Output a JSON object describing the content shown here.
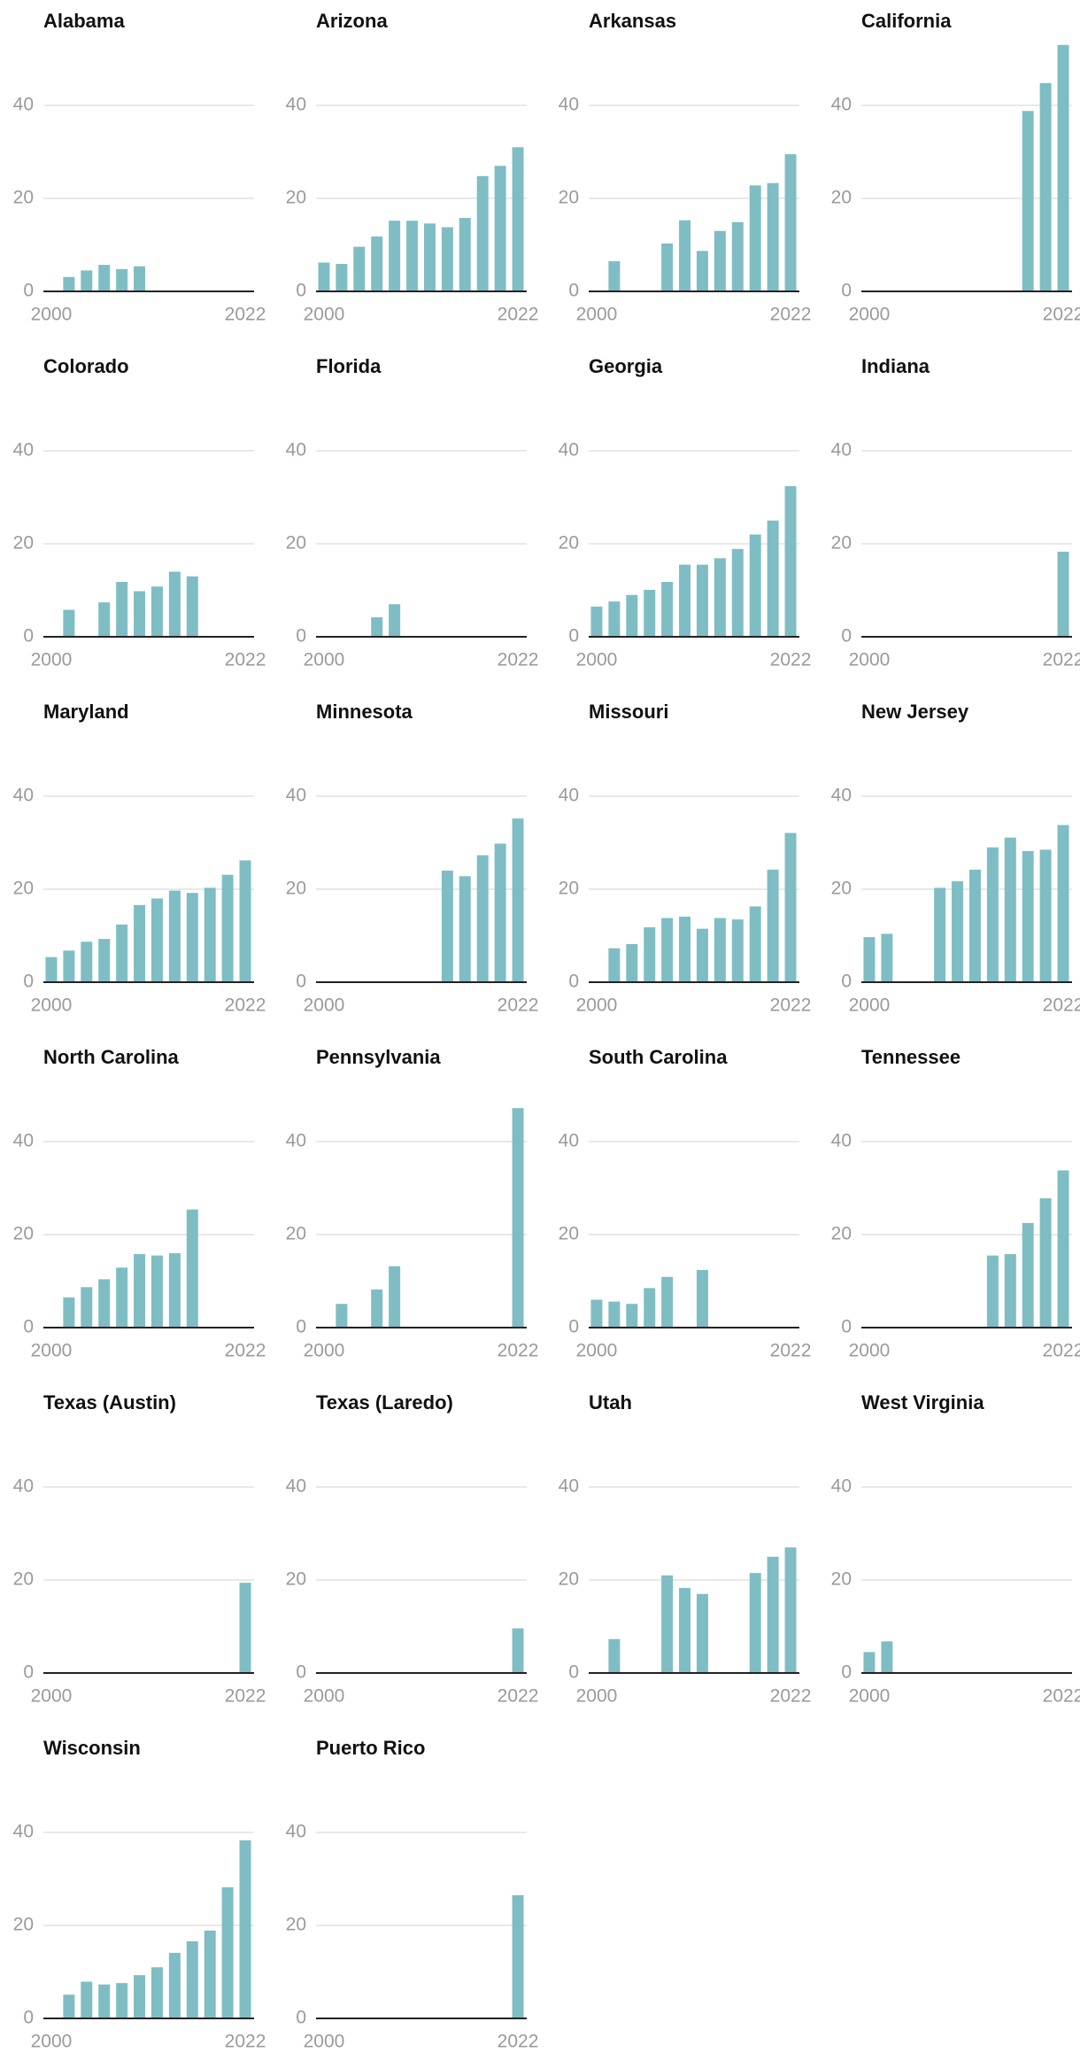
{
  "chart_data": [
    {
      "type": "bar",
      "title": "Alabama",
      "x": [
        2000,
        2002,
        2004,
        2006,
        2008,
        2010,
        2012,
        2014,
        2016,
        2018,
        2020,
        2022
      ],
      "values": [
        null,
        3.1,
        4.5,
        5.7,
        4.8,
        5.4,
        null,
        null,
        null,
        null,
        null,
        null
      ],
      "color": "#7fbdc4",
      "xlim": [
        1999.1,
        2023
      ],
      "xticks": [
        2000,
        2022
      ],
      "ylim": [
        0,
        54
      ],
      "yticks": [
        0,
        20,
        40
      ],
      "grid": true
    },
    {
      "type": "bar",
      "title": "Arizona",
      "x": [
        2000,
        2002,
        2004,
        2006,
        2008,
        2010,
        2012,
        2014,
        2016,
        2018,
        2020,
        2022
      ],
      "values": [
        6.2,
        5.9,
        9.6,
        11.8,
        15.2,
        15.2,
        14.6,
        13.8,
        15.8,
        24.8,
        27,
        31
      ],
      "color": "#7fbdc4",
      "xlim": [
        1999.1,
        2023
      ],
      "xticks": [
        2000,
        2022
      ],
      "ylim": [
        0,
        54
      ],
      "yticks": [
        0,
        20,
        40
      ],
      "grid": true
    },
    {
      "type": "bar",
      "title": "Arkansas",
      "x": [
        2000,
        2002,
        2004,
        2006,
        2008,
        2010,
        2012,
        2014,
        2016,
        2018,
        2020,
        2022
      ],
      "values": [
        null,
        6.5,
        null,
        null,
        10.3,
        15.3,
        8.7,
        13,
        14.9,
        22.8,
        23.3,
        29.5
      ],
      "color": "#7fbdc4",
      "xlim": [
        1999.1,
        2023
      ],
      "xticks": [
        2000,
        2022
      ],
      "ylim": [
        0,
        54
      ],
      "yticks": [
        0,
        20,
        40
      ],
      "grid": true
    },
    {
      "type": "bar",
      "title": "California",
      "x": [
        2000,
        2002,
        2004,
        2006,
        2008,
        2010,
        2012,
        2014,
        2016,
        2018,
        2020,
        2022
      ],
      "values": [
        null,
        null,
        null,
        null,
        null,
        null,
        null,
        null,
        null,
        38.8,
        44.8,
        53
      ],
      "color": "#7fbdc4",
      "xlim": [
        1999.1,
        2023
      ],
      "xticks": [
        2000,
        2022
      ],
      "ylim": [
        0,
        54
      ],
      "yticks": [
        0,
        20,
        40
      ],
      "grid": true
    },
    {
      "type": "bar",
      "title": "Colorado",
      "x": [
        2000,
        2002,
        2004,
        2006,
        2008,
        2010,
        2012,
        2014,
        2016,
        2018,
        2020,
        2022
      ],
      "values": [
        null,
        5.8,
        null,
        7.4,
        11.8,
        9.8,
        10.8,
        14,
        13,
        null,
        null,
        null
      ],
      "color": "#7fbdc4",
      "xlim": [
        1999.1,
        2023
      ],
      "xticks": [
        2000,
        2022
      ],
      "ylim": [
        0,
        54
      ],
      "yticks": [
        0,
        20,
        40
      ],
      "grid": true
    },
    {
      "type": "bar",
      "title": "Florida",
      "x": [
        2000,
        2002,
        2004,
        2006,
        2008,
        2010,
        2012,
        2014,
        2016,
        2018,
        2020,
        2022
      ],
      "values": [
        null,
        null,
        null,
        4.2,
        7,
        null,
        null,
        null,
        null,
        null,
        null,
        null
      ],
      "color": "#7fbdc4",
      "xlim": [
        1999.1,
        2023
      ],
      "xticks": [
        2000,
        2022
      ],
      "ylim": [
        0,
        54
      ],
      "yticks": [
        0,
        20,
        40
      ],
      "grid": true
    },
    {
      "type": "bar",
      "title": "Georgia",
      "x": [
        2000,
        2002,
        2004,
        2006,
        2008,
        2010,
        2012,
        2014,
        2016,
        2018,
        2020,
        2022
      ],
      "values": [
        6.5,
        7.6,
        9,
        10.1,
        11.8,
        15.5,
        15.5,
        16.9,
        18.9,
        22,
        25,
        32.4
      ],
      "color": "#7fbdc4",
      "xlim": [
        1999.1,
        2023
      ],
      "xticks": [
        2000,
        2022
      ],
      "ylim": [
        0,
        54
      ],
      "yticks": [
        0,
        20,
        40
      ],
      "grid": true
    },
    {
      "type": "bar",
      "title": "Indiana",
      "x": [
        2000,
        2002,
        2004,
        2006,
        2008,
        2010,
        2012,
        2014,
        2016,
        2018,
        2020,
        2022
      ],
      "values": [
        null,
        null,
        null,
        null,
        null,
        null,
        null,
        null,
        null,
        null,
        null,
        18.3
      ],
      "color": "#7fbdc4",
      "xlim": [
        1999.1,
        2023
      ],
      "xticks": [
        2000,
        2022
      ],
      "ylim": [
        0,
        54
      ],
      "yticks": [
        0,
        20,
        40
      ],
      "grid": true
    },
    {
      "type": "bar",
      "title": "Maryland",
      "x": [
        2000,
        2002,
        2004,
        2006,
        2008,
        2010,
        2012,
        2014,
        2016,
        2018,
        2020,
        2022
      ],
      "values": [
        5.4,
        6.8,
        8.7,
        9.3,
        12.4,
        16.6,
        18,
        19.7,
        19.2,
        20.3,
        23.1,
        26.2
      ],
      "color": "#7fbdc4",
      "xlim": [
        1999.1,
        2023
      ],
      "xticks": [
        2000,
        2022
      ],
      "ylim": [
        0,
        54
      ],
      "yticks": [
        0,
        20,
        40
      ],
      "grid": true
    },
    {
      "type": "bar",
      "title": "Minnesota",
      "x": [
        2000,
        2002,
        2004,
        2006,
        2008,
        2010,
        2012,
        2014,
        2016,
        2018,
        2020,
        2022
      ],
      "values": [
        null,
        null,
        null,
        null,
        null,
        null,
        null,
        24,
        22.8,
        27.3,
        29.8,
        35.2
      ],
      "color": "#7fbdc4",
      "xlim": [
        1999.1,
        2023
      ],
      "xticks": [
        2000,
        2022
      ],
      "ylim": [
        0,
        54
      ],
      "yticks": [
        0,
        20,
        40
      ],
      "grid": true
    },
    {
      "type": "bar",
      "title": "Missouri",
      "x": [
        2000,
        2002,
        2004,
        2006,
        2008,
        2010,
        2012,
        2014,
        2016,
        2018,
        2020,
        2022
      ],
      "values": [
        null,
        7.3,
        8.2,
        11.8,
        13.8,
        14.1,
        11.5,
        13.8,
        13.5,
        16.3,
        24.2,
        32.1
      ],
      "color": "#7fbdc4",
      "xlim": [
        1999.1,
        2023
      ],
      "xticks": [
        2000,
        2022
      ],
      "ylim": [
        0,
        54
      ],
      "yticks": [
        0,
        20,
        40
      ],
      "grid": true
    },
    {
      "type": "bar",
      "title": "New Jersey",
      "x": [
        2000,
        2002,
        2004,
        2006,
        2008,
        2010,
        2012,
        2014,
        2016,
        2018,
        2020,
        2022
      ],
      "values": [
        9.7,
        10.4,
        null,
        null,
        20.3,
        21.7,
        24.2,
        29,
        31.1,
        28.2,
        28.5,
        33.8
      ],
      "color": "#7fbdc4",
      "xlim": [
        1999.1,
        2023
      ],
      "xticks": [
        2000,
        2022
      ],
      "ylim": [
        0,
        54
      ],
      "yticks": [
        0,
        20,
        40
      ],
      "grid": true
    },
    {
      "type": "bar",
      "title": "North Carolina",
      "x": [
        2000,
        2002,
        2004,
        2006,
        2008,
        2010,
        2012,
        2014,
        2016,
        2018,
        2020,
        2022
      ],
      "values": [
        null,
        6.5,
        8.7,
        10.4,
        12.9,
        15.8,
        15.5,
        16,
        25.4,
        null,
        null,
        null
      ],
      "color": "#7fbdc4",
      "xlim": [
        1999.1,
        2023
      ],
      "xticks": [
        2000,
        2022
      ],
      "ylim": [
        0,
        54
      ],
      "yticks": [
        0,
        20,
        40
      ],
      "grid": true
    },
    {
      "type": "bar",
      "title": "Pennsylvania",
      "x": [
        2000,
        2002,
        2004,
        2006,
        2008,
        2010,
        2012,
        2014,
        2016,
        2018,
        2020,
        2022
      ],
      "values": [
        null,
        5.1,
        null,
        8.2,
        13.2,
        null,
        null,
        null,
        null,
        null,
        null,
        47.2
      ],
      "color": "#7fbdc4",
      "xlim": [
        1999.1,
        2023
      ],
      "xticks": [
        2000,
        2022
      ],
      "ylim": [
        0,
        54
      ],
      "yticks": [
        0,
        20,
        40
      ],
      "grid": true
    },
    {
      "type": "bar",
      "title": "South Carolina",
      "x": [
        2000,
        2002,
        2004,
        2006,
        2008,
        2010,
        2012,
        2014,
        2016,
        2018,
        2020,
        2022
      ],
      "values": [
        6,
        5.6,
        5.1,
        8.5,
        10.9,
        null,
        12.4,
        null,
        null,
        null,
        null,
        null
      ],
      "color": "#7fbdc4",
      "xlim": [
        1999.1,
        2023
      ],
      "xticks": [
        2000,
        2022
      ],
      "ylim": [
        0,
        54
      ],
      "yticks": [
        0,
        20,
        40
      ],
      "grid": true
    },
    {
      "type": "bar",
      "title": "Tennessee",
      "x": [
        2000,
        2002,
        2004,
        2006,
        2008,
        2010,
        2012,
        2014,
        2016,
        2018,
        2020,
        2022
      ],
      "values": [
        null,
        null,
        null,
        null,
        null,
        null,
        null,
        15.5,
        15.8,
        22.5,
        27.8,
        33.8
      ],
      "color": "#7fbdc4",
      "xlim": [
        1999.1,
        2023
      ],
      "xticks": [
        2000,
        2022
      ],
      "ylim": [
        0,
        54
      ],
      "yticks": [
        0,
        20,
        40
      ],
      "grid": true
    },
    {
      "type": "bar",
      "title": "Texas (Austin)",
      "x": [
        2000,
        2002,
        2004,
        2006,
        2008,
        2010,
        2012,
        2014,
        2016,
        2018,
        2020,
        2022
      ],
      "values": [
        null,
        null,
        null,
        null,
        null,
        null,
        null,
        null,
        null,
        null,
        null,
        19.4
      ],
      "color": "#7fbdc4",
      "xlim": [
        1999.1,
        2023
      ],
      "xticks": [
        2000,
        2022
      ],
      "ylim": [
        0,
        54
      ],
      "yticks": [
        0,
        20,
        40
      ],
      "grid": true
    },
    {
      "type": "bar",
      "title": "Texas (Laredo)",
      "x": [
        2000,
        2002,
        2004,
        2006,
        2008,
        2010,
        2012,
        2014,
        2016,
        2018,
        2020,
        2022
      ],
      "values": [
        null,
        null,
        null,
        null,
        null,
        null,
        null,
        null,
        null,
        null,
        null,
        9.6
      ],
      "color": "#7fbdc4",
      "xlim": [
        1999.1,
        2023
      ],
      "xticks": [
        2000,
        2022
      ],
      "ylim": [
        0,
        54
      ],
      "yticks": [
        0,
        20,
        40
      ],
      "grid": true
    },
    {
      "type": "bar",
      "title": "Utah",
      "x": [
        2000,
        2002,
        2004,
        2006,
        2008,
        2010,
        2012,
        2014,
        2016,
        2018,
        2020,
        2022
      ],
      "values": [
        null,
        7.3,
        null,
        null,
        21,
        18.3,
        17,
        null,
        null,
        21.5,
        25,
        27
      ],
      "color": "#7fbdc4",
      "xlim": [
        1999.1,
        2023
      ],
      "xticks": [
        2000,
        2022
      ],
      "ylim": [
        0,
        54
      ],
      "yticks": [
        0,
        20,
        40
      ],
      "grid": true
    },
    {
      "type": "bar",
      "title": "West Virginia",
      "x": [
        2000,
        2002,
        2004,
        2006,
        2008,
        2010,
        2012,
        2014,
        2016,
        2018,
        2020,
        2022
      ],
      "values": [
        4.5,
        6.8,
        null,
        null,
        null,
        null,
        null,
        null,
        null,
        null,
        null,
        null
      ],
      "color": "#7fbdc4",
      "xlim": [
        1999.1,
        2023
      ],
      "xticks": [
        2000,
        2022
      ],
      "ylim": [
        0,
        54
      ],
      "yticks": [
        0,
        20,
        40
      ],
      "grid": true
    },
    {
      "type": "bar",
      "title": "Wisconsin",
      "x": [
        2000,
        2002,
        2004,
        2006,
        2008,
        2010,
        2012,
        2014,
        2016,
        2018,
        2020,
        2022
      ],
      "values": [
        null,
        5.1,
        7.9,
        7.3,
        7.6,
        9.3,
        11,
        14.1,
        16.6,
        18.9,
        28.2,
        38.3
      ],
      "color": "#7fbdc4",
      "xlim": [
        1999.1,
        2023
      ],
      "xticks": [
        2000,
        2022
      ],
      "ylim": [
        0,
        54
      ],
      "yticks": [
        0,
        20,
        40
      ],
      "grid": true
    },
    {
      "type": "bar",
      "title": "Puerto Rico",
      "x": [
        2000,
        2002,
        2004,
        2006,
        2008,
        2010,
        2012,
        2014,
        2016,
        2018,
        2020,
        2022
      ],
      "values": [
        null,
        null,
        null,
        null,
        null,
        null,
        null,
        null,
        null,
        null,
        null,
        26.5
      ],
      "color": "#7fbdc4",
      "xlim": [
        1999.1,
        2023
      ],
      "xticks": [
        2000,
        2022
      ],
      "ylim": [
        0,
        54
      ],
      "yticks": [
        0,
        20,
        40
      ],
      "grid": true
    }
  ]
}
